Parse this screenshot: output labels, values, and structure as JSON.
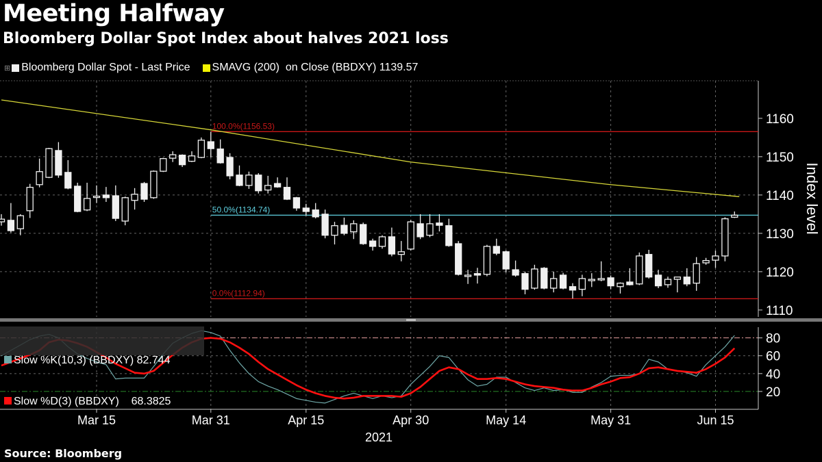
{
  "header": {
    "title": "Meeting Halfway",
    "subtitle": "Bloomberg Dollar Spot Index about halves 2021 loss"
  },
  "legend": {
    "series1": "Bloomberg Dollar Spot - Last Price",
    "series2": "SMAVG (200)  on Close (BBDXY) 1139.57"
  },
  "stoch_legend": {
    "k": "Slow %K(10,3) (BBDXY) 82.744",
    "d": "Slow %D(3) (BBDXY)    68.3825"
  },
  "source": "Source: Bloomberg",
  "colors": {
    "candle": "#f0f0f0",
    "sma": "#d8d838",
    "fib_red": "#c81818",
    "fib_cyan": "#5fd0e0",
    "k": "#6fa8a8",
    "d": "#ff1010"
  },
  "chart_data": [
    {
      "type": "candlestick",
      "ylabel": "Index level",
      "ylim": [
        1108.2,
        1169.8
      ],
      "yticks": [
        1110,
        1120,
        1130,
        1140,
        1150,
        1160
      ],
      "x_ticks": [
        {
          "label": "Mar 15",
          "index": 10
        },
        {
          "label": "Mar 31",
          "index": 22
        },
        {
          "label": "Apr 15",
          "index": 32
        },
        {
          "label": "Apr 30",
          "index": 43
        },
        {
          "label": "May 14",
          "index": 53
        },
        {
          "label": "May 31",
          "index": 64
        },
        {
          "label": "Jun 15",
          "index": 75
        }
      ],
      "x_year": "2021",
      "fib_levels": [
        {
          "label": "100.0%(1156.53)",
          "value": 1156.53,
          "color": "red"
        },
        {
          "label": "50.0%(1134.74)",
          "value": 1134.74,
          "color": "cyan"
        },
        {
          "label": "0.0%(1112.94)",
          "value": 1112.94,
          "color": "red"
        }
      ],
      "fib_start_index": 22,
      "sma200": [
        [
          0,
          1164.8
        ],
        [
          22,
          1157
        ],
        [
          43,
          1148.6
        ],
        [
          64,
          1142.7
        ],
        [
          77.5,
          1139.57
        ]
      ],
      "ohlc": [
        [
          1133,
          1135,
          1132,
          1133.7
        ],
        [
          1133.4,
          1137.9,
          1130.2,
          1130.7
        ],
        [
          1131.2,
          1135,
          1129.5,
          1134.6
        ],
        [
          1135.9,
          1142.9,
          1134,
          1142
        ],
        [
          1142.7,
          1149.5,
          1142,
          1146.1
        ],
        [
          1144.6,
          1152.3,
          1144.4,
          1152.1
        ],
        [
          1151.6,
          1153.8,
          1144.5,
          1145.2
        ],
        [
          1145.9,
          1149.1,
          1141.5,
          1141.8
        ],
        [
          1142.3,
          1143.2,
          1135.5,
          1135.7
        ],
        [
          1136.1,
          1143.2,
          1135.8,
          1139.1
        ],
        [
          1139.5,
          1142.5,
          1137.9,
          1139.7
        ],
        [
          1140,
          1142.1,
          1138.2,
          1139.3
        ],
        [
          1139.8,
          1142.5,
          1133.2,
          1133.9
        ],
        [
          1133.2,
          1139.6,
          1132.1,
          1139.3
        ],
        [
          1138.6,
          1141.8,
          1136.2,
          1140.2
        ],
        [
          1143,
          1143.4,
          1138.2,
          1138.9
        ],
        [
          1139.3,
          1146.4,
          1139,
          1146.2
        ],
        [
          1146.2,
          1149.7,
          1146,
          1149.5
        ],
        [
          1149.6,
          1151.4,
          1148.6,
          1150.5
        ],
        [
          1150.4,
          1150.6,
          1147.3,
          1147.9
        ],
        [
          1148.8,
          1151.4,
          1148.6,
          1150.2
        ],
        [
          1149.8,
          1155,
          1149.6,
          1154.3
        ],
        [
          1153.9,
          1156.53,
          1149.8,
          1152.1
        ],
        [
          1152,
          1154.5,
          1148.2,
          1148.4
        ],
        [
          1149.8,
          1150.9,
          1144.1,
          1145
        ],
        [
          1145.2,
          1147.7,
          1142.3,
          1142.5
        ],
        [
          1142.5,
          1146.1,
          1141.6,
          1145.2
        ],
        [
          1145.2,
          1145.7,
          1140.4,
          1141.1
        ],
        [
          1141.3,
          1145,
          1140.4,
          1142.5
        ],
        [
          1143,
          1144.6,
          1141.9,
          1142.1
        ],
        [
          1142,
          1144.6,
          1138.7,
          1138.9
        ],
        [
          1139.3,
          1139.5,
          1135.9,
          1136.6
        ],
        [
          1136.6,
          1137.7,
          1134.6,
          1135.7
        ],
        [
          1136.1,
          1137.9,
          1133.9,
          1134.3
        ],
        [
          1135,
          1136.2,
          1128.7,
          1129.5
        ],
        [
          1129.5,
          1133,
          1127.1,
          1132
        ],
        [
          1132.1,
          1134.1,
          1129.5,
          1130
        ],
        [
          1130.4,
          1133.4,
          1128.5,
          1132.5
        ],
        [
          1132.3,
          1132.8,
          1127,
          1127.3
        ],
        [
          1128,
          1128.6,
          1125.5,
          1126.6
        ],
        [
          1126.6,
          1129.5,
          1126,
          1129.1
        ],
        [
          1129.1,
          1131.5,
          1124,
          1124.6
        ],
        [
          1124.5,
          1128,
          1122.7,
          1125.2
        ],
        [
          1125.9,
          1133.5,
          1125.5,
          1133
        ],
        [
          1132.5,
          1135,
          1128.5,
          1129.1
        ],
        [
          1129.5,
          1135,
          1129,
          1132.5
        ],
        [
          1132.7,
          1135,
          1130.5,
          1132.1
        ],
        [
          1132,
          1133.8,
          1126.5,
          1126.8
        ],
        [
          1127.3,
          1128,
          1119,
          1119.3
        ],
        [
          1118.9,
          1120.5,
          1116.8,
          1119.1
        ],
        [
          1119.5,
          1121,
          1116.9,
          1119.1
        ],
        [
          1119.3,
          1127,
          1118.8,
          1126.6
        ],
        [
          1126.6,
          1128.6,
          1124.3,
          1124.8
        ],
        [
          1125.2,
          1125.5,
          1119.8,
          1120.7
        ],
        [
          1120.5,
          1122.9,
          1118.7,
          1119.1
        ],
        [
          1119.5,
          1120,
          1114.1,
          1115.4
        ],
        [
          1115.7,
          1121.8,
          1115.3,
          1120.7
        ],
        [
          1120.9,
          1121.2,
          1115.4,
          1115.7
        ],
        [
          1115.7,
          1120,
          1114.6,
          1118.2
        ],
        [
          1119.1,
          1119.7,
          1115.4,
          1115.7
        ],
        [
          1116.1,
          1117,
          1113,
          1115.2
        ],
        [
          1115.4,
          1119.2,
          1113.6,
          1118.2
        ],
        [
          1117.9,
          1119.6,
          1116,
          1118
        ],
        [
          1117.9,
          1122.7,
          1117.5,
          1118.2
        ],
        [
          1118.4,
          1119,
          1115.4,
          1116.3
        ],
        [
          1116.1,
          1117.2,
          1114.3,
          1117
        ],
        [
          1117.3,
          1120.9,
          1116.4,
          1116.6
        ],
        [
          1116.8,
          1125,
          1116.5,
          1124.1
        ],
        [
          1124.5,
          1125.7,
          1118.2,
          1118.6
        ],
        [
          1119.1,
          1120.5,
          1115.7,
          1116.3
        ],
        [
          1116.6,
          1118.7,
          1115.8,
          1118
        ],
        [
          1118,
          1118.6,
          1114.6,
          1118.6
        ],
        [
          1118.6,
          1120.9,
          1116.2,
          1116.8
        ],
        [
          1117,
          1123.8,
          1115,
          1122.1
        ],
        [
          1122.3,
          1123.6,
          1121.8,
          1122.9
        ],
        [
          1123,
          1125.5,
          1121,
          1124.1
        ],
        [
          1124.1,
          1134.2,
          1122.7,
          1133.8
        ],
        [
          1134.2,
          1135.7,
          1134,
          1134.74
        ]
      ]
    },
    {
      "type": "line",
      "ylim": [
        0,
        92
      ],
      "yticks": [
        20,
        40,
        60,
        80
      ],
      "reference_lines": [
        80,
        20
      ],
      "series": [
        {
          "name": "Slow %K(10,3)",
          "values": [
            60,
            66,
            72,
            78,
            82,
            84,
            80,
            70,
            62,
            57,
            53,
            50,
            34,
            35,
            35,
            35,
            48,
            62,
            74,
            80,
            85,
            88,
            86,
            82,
            66,
            52,
            40,
            31,
            26,
            22,
            17,
            12,
            10,
            8,
            7,
            11,
            15,
            18,
            15,
            12,
            15,
            13,
            15,
            28,
            38,
            48,
            60,
            58,
            45,
            33,
            26,
            28,
            36,
            36,
            30,
            24,
            21,
            24,
            21,
            22,
            19,
            19,
            25,
            30,
            37,
            38,
            38,
            40,
            56,
            53,
            45,
            43,
            41,
            37,
            50,
            60,
            70,
            82.744
          ]
        },
        {
          "name": "Slow %D(3)",
          "values": [
            49,
            53,
            57,
            61,
            66,
            75,
            78,
            77,
            74,
            70,
            64,
            58,
            51,
            46,
            41,
            40,
            43,
            52,
            61,
            69,
            75,
            79,
            80,
            79,
            75,
            69,
            62,
            53,
            45,
            39,
            33,
            27,
            22,
            18,
            15,
            13,
            12,
            13,
            15,
            15,
            15,
            15,
            14,
            18,
            25,
            34,
            43,
            47,
            45,
            39,
            34,
            34,
            35,
            34,
            31,
            28,
            26,
            25,
            24,
            22,
            21,
            21,
            24,
            28,
            31,
            35,
            36,
            40,
            46,
            47,
            45,
            43,
            42,
            41,
            45,
            51,
            58,
            68.3825
          ]
        }
      ]
    }
  ]
}
